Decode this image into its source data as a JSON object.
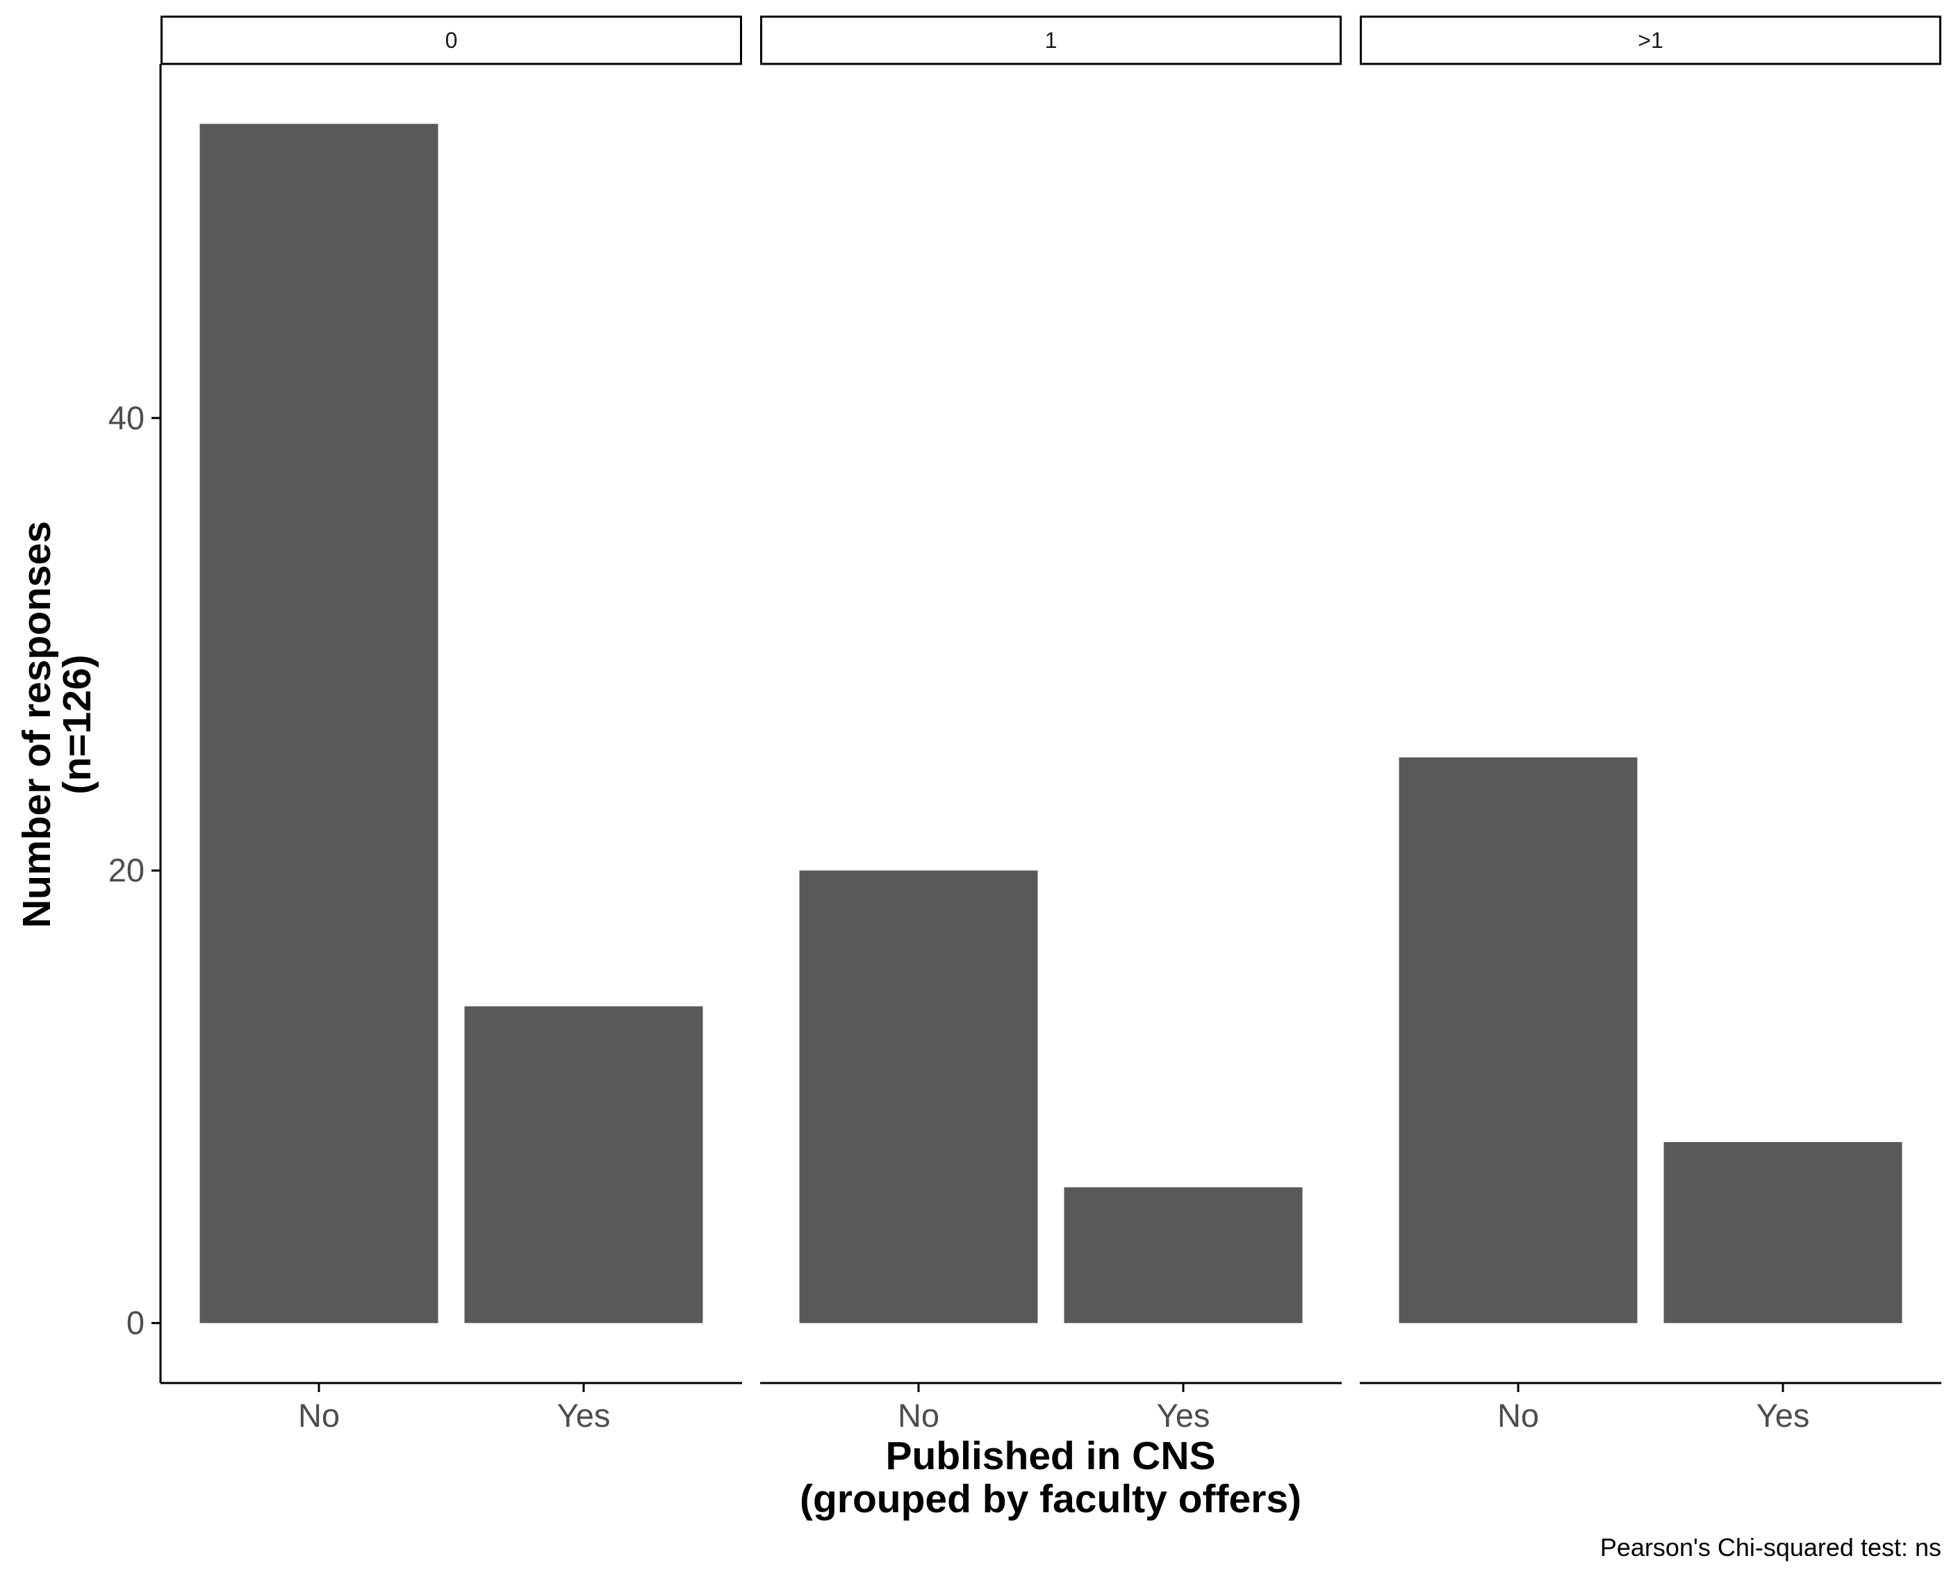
{
  "chart_data": {
    "type": "bar",
    "facets": [
      {
        "label": "0",
        "categories": [
          "No",
          "Yes"
        ],
        "values": [
          53,
          14
        ]
      },
      {
        "label": "1",
        "categories": [
          "No",
          "Yes"
        ],
        "values": [
          20,
          6
        ]
      },
      {
        "label": ">1",
        "categories": [
          "No",
          "Yes"
        ],
        "values": [
          25,
          8
        ]
      }
    ],
    "xlabel_lines": [
      "Published in CNS",
      "(grouped by faculty offers)"
    ],
    "ylabel_lines": [
      "Number of responses",
      "(n=126)"
    ],
    "caption": "Pearson's Chi-squared test: ns",
    "yticks": [
      0,
      20,
      40
    ],
    "ylim": [
      -2.65,
      55.65
    ],
    "bar_color": "#595959",
    "grid": false
  }
}
